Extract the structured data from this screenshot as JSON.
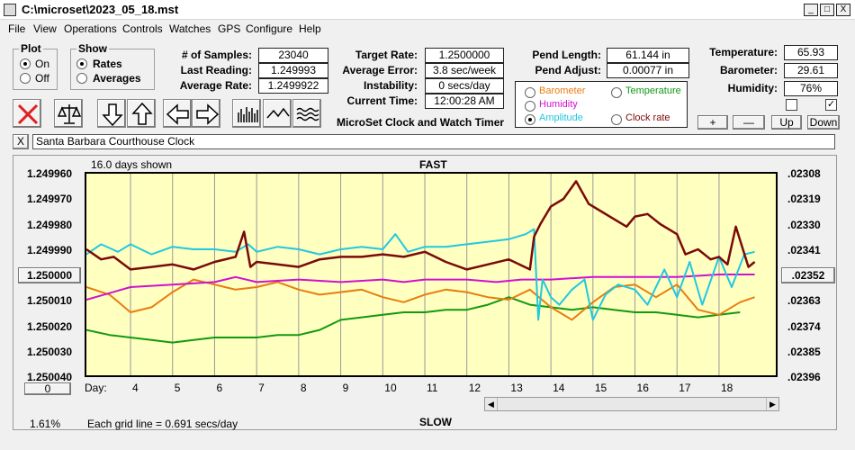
{
  "title": "C:\\microset\\2023_05_18.mst",
  "window_buttons": [
    "_",
    "□",
    "X"
  ],
  "menu": [
    "File",
    "View",
    "Operations",
    "Controls",
    "Watches",
    "GPS",
    "Configure",
    "Help"
  ],
  "plot_group": {
    "title": "Plot",
    "options": [
      "On",
      "Off"
    ],
    "selected": "On"
  },
  "show_group": {
    "title": "Show",
    "options": [
      "Rates",
      "Averages"
    ],
    "selected": "Rates"
  },
  "stats": [
    {
      "label": "# of Samples:",
      "value": "23040"
    },
    {
      "label": "Last Reading:",
      "value": "1.249993"
    },
    {
      "label": "Average Rate:",
      "value": "1.2499922"
    }
  ],
  "targets": [
    {
      "label": "Target Rate:",
      "value": "1.2500000"
    },
    {
      "label": "Average Error:",
      "value": "3.8 sec/week"
    },
    {
      "label": "Instability:",
      "value": "0 secs/day"
    },
    {
      "label": "Current Time:",
      "value": "12:00:28 AM"
    }
  ],
  "pend": [
    {
      "label": "Pend Length:",
      "value": "61.144 in"
    },
    {
      "label": "Pend Adjust:",
      "value": "0.00077 in"
    }
  ],
  "env": [
    {
      "label": "Temperature:",
      "value": "65.93"
    },
    {
      "label": "Barometer:",
      "value": "29.61"
    },
    {
      "label": "Humidity:",
      "value": "76%"
    }
  ],
  "checkboxes": [
    false,
    true
  ],
  "env_buttons": [
    "+",
    "—",
    "Up",
    "Down"
  ],
  "app_caption": "MicroSet Clock and Watch Timer",
  "legend": [
    {
      "name": "Barometer",
      "color": "#e87d10",
      "selected": false
    },
    {
      "name": "Temperature",
      "color": "#109a10",
      "selected": false
    },
    {
      "name": "Humidity",
      "color": "#d010d0",
      "selected": false
    },
    {
      "name": "Amplitude",
      "color": "#20c8e0",
      "selected": true
    },
    {
      "name": "Clock rate",
      "color": "#7a0a0a",
      "selected": false
    }
  ],
  "toolbar_icons": [
    "cancel-icon",
    "balance-scale-icon",
    "arrow-down-icon",
    "arrow-up-icon",
    "arrow-left-icon",
    "arrow-right-icon",
    "bar-plot-icon",
    "line-plot-icon",
    "wave-plot-icon"
  ],
  "clear_button": "X",
  "clock_name": "Santa Barbara Courthouse Clock",
  "chart": {
    "days_shown": "16.0 days shown",
    "top_label": "FAST",
    "bottom_label": "SLOW",
    "left_button": "1.250000",
    "right_button": ".02352",
    "bottom_button": "0",
    "percent": "1.61%",
    "grid_note": "Each grid line = 0.691 secs/day",
    "day_prefix": "Day:"
  },
  "chart_data": {
    "type": "line",
    "y_left_ticks": [
      "1.249960",
      "1.249970",
      "1.249980",
      "1.249990",
      "1.250000",
      "1.250010",
      "1.250020",
      "1.250030",
      "1.250040"
    ],
    "y_right_ticks": [
      ".02308",
      ".02319",
      ".02330",
      ".02341",
      ".02352",
      ".02363",
      ".02374",
      ".02385",
      ".02396"
    ],
    "x_ticks": [
      "4",
      "5",
      "6",
      "7",
      "8",
      "9",
      "10",
      "11",
      "12",
      "13",
      "14",
      "15",
      "16",
      "17",
      "18"
    ],
    "x_range": [
      2.95,
      19.35
    ],
    "y_range": [
      1.24996,
      1.25004
    ],
    "series": [
      {
        "name": "Temperature",
        "color": "#109a10",
        "x": [
          2.95,
          3.5,
          4,
          4.5,
          5,
          5.5,
          6,
          6.5,
          7,
          7.5,
          8,
          8.5,
          9,
          9.5,
          10,
          10.5,
          11,
          11.5,
          12,
          12.5,
          13,
          13.5,
          14,
          14.5,
          15,
          15.5,
          16,
          16.5,
          17,
          17.5,
          18,
          18.5
        ],
        "y": [
          1.250022,
          1.250024,
          1.250025,
          1.250026,
          1.250027,
          1.250026,
          1.250025,
          1.250025,
          1.250025,
          1.250024,
          1.250024,
          1.250022,
          1.250018,
          1.250017,
          1.250016,
          1.250015,
          1.250015,
          1.250014,
          1.250014,
          1.250012,
          1.250009,
          1.250012,
          1.250013,
          1.250014,
          1.250013,
          1.250014,
          1.250015,
          1.250015,
          1.250016,
          1.250017,
          1.250016,
          1.250015
        ]
      },
      {
        "name": "Barometer",
        "color": "#e87d10",
        "x": [
          2.95,
          3.5,
          4,
          4.5,
          5,
          5.5,
          6,
          6.5,
          7,
          7.5,
          8,
          8.5,
          9,
          9.5,
          10,
          10.5,
          11,
          11.5,
          12,
          12.5,
          13,
          13.5,
          14,
          14.5,
          15,
          15.5,
          16,
          16.5,
          17,
          17.5,
          18,
          18.5,
          18.85
        ],
        "y": [
          1.250005,
          1.250008,
          1.250015,
          1.250013,
          1.250007,
          1.250002,
          1.250004,
          1.250006,
          1.250005,
          1.250003,
          1.250006,
          1.250008,
          1.250007,
          1.250006,
          1.250009,
          1.250011,
          1.250008,
          1.250006,
          1.250007,
          1.250009,
          1.25001,
          1.250006,
          1.250013,
          1.250018,
          1.250011,
          1.250005,
          1.250004,
          1.250009,
          1.250004,
          1.250014,
          1.250016,
          1.250011,
          1.250009
        ]
      },
      {
        "name": "Humidity",
        "color": "#d010d0",
        "x": [
          2.95,
          4,
          5,
          6,
          6.5,
          7,
          8,
          9,
          10,
          10.5,
          11,
          12,
          12.7,
          13.3,
          14,
          15,
          16,
          17,
          18,
          18.85
        ],
        "y": [
          1.25001,
          1.250005,
          1.250004,
          1.250003,
          1.250001,
          1.250003,
          1.250002,
          1.250003,
          1.250002,
          1.250003,
          1.250002,
          1.250002,
          1.250003,
          1.250002,
          1.250002,
          1.250001,
          1.250001,
          1.250001,
          1.25,
          1.25
        ]
      },
      {
        "name": "Amplitude",
        "color": "#20c8e0",
        "x": [
          2.95,
          3.3,
          3.7,
          4,
          4.5,
          5,
          5.5,
          6,
          6.5,
          6.8,
          7,
          7.5,
          8,
          8.5,
          9,
          9.5,
          10,
          10.3,
          10.6,
          11,
          11.5,
          12,
          12.5,
          13,
          13.4,
          13.6,
          13.7,
          13.8,
          14,
          14.2,
          14.5,
          14.8,
          15,
          15.3,
          15.6,
          16,
          16.3,
          16.7,
          17,
          17.3,
          17.6,
          18,
          18.3,
          18.6,
          18.85
        ],
        "y": [
          1.249992,
          1.249988,
          1.249991,
          1.249988,
          1.249992,
          1.249989,
          1.24999,
          1.24999,
          1.249991,
          1.249988,
          1.249991,
          1.249989,
          1.24999,
          1.249992,
          1.24999,
          1.249989,
          1.24999,
          1.249984,
          1.249991,
          1.249989,
          1.249989,
          1.249988,
          1.249987,
          1.249986,
          1.249984,
          1.249982,
          1.250018,
          1.250002,
          1.250009,
          1.250012,
          1.250006,
          1.250002,
          1.250018,
          1.250008,
          1.250004,
          1.250006,
          1.250012,
          1.249998,
          1.250009,
          1.249995,
          1.250012,
          1.249993,
          1.250005,
          1.249992,
          1.249991
        ]
      },
      {
        "name": "Clock rate",
        "color": "#7a0a0a",
        "x": [
          2.95,
          3.3,
          3.6,
          4,
          4.5,
          5,
          5.5,
          6,
          6.5,
          6.7,
          6.85,
          7,
          7.5,
          8,
          8.5,
          9,
          9.5,
          10,
          10.5,
          11,
          11.5,
          12,
          12.5,
          13,
          13.5,
          13.6,
          13.75,
          14,
          14.3,
          14.6,
          14.9,
          15.2,
          15.5,
          15.8,
          16,
          16.3,
          16.6,
          17,
          17.2,
          17.5,
          17.8,
          18,
          18.2,
          18.4,
          18.55,
          18.7,
          18.85
        ],
        "y": [
          1.24999,
          1.249994,
          1.249993,
          1.249998,
          1.249997,
          1.249996,
          1.249998,
          1.249995,
          1.249993,
          1.249983,
          1.249997,
          1.249995,
          1.249996,
          1.249997,
          1.249994,
          1.249993,
          1.249993,
          1.249992,
          1.249993,
          1.249991,
          1.249995,
          1.249998,
          1.249996,
          1.249994,
          1.249998,
          1.249985,
          1.24998,
          1.249973,
          1.24997,
          1.249963,
          1.249972,
          1.249975,
          1.249978,
          1.249981,
          1.249977,
          1.249976,
          1.24998,
          1.249984,
          1.249992,
          1.24999,
          1.249994,
          1.249993,
          1.249996,
          1.249981,
          1.249989,
          1.249997,
          1.249995
        ]
      }
    ]
  }
}
